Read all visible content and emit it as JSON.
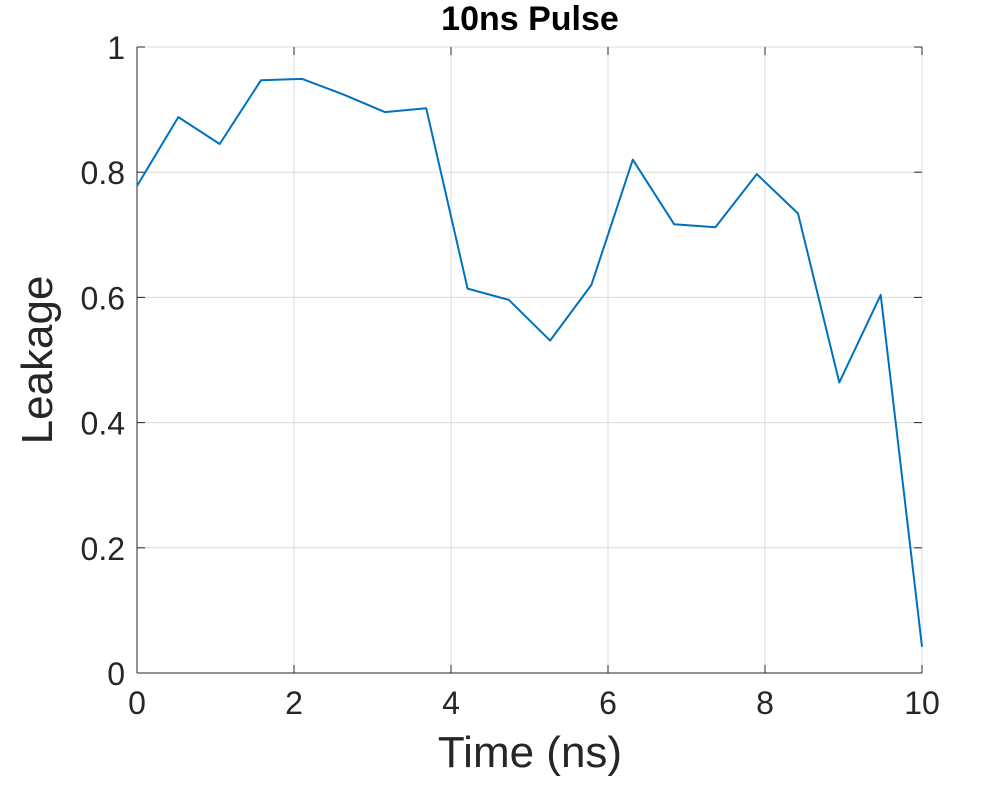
{
  "chart_data": {
    "type": "line",
    "title": "10ns Pulse",
    "xlabel": "Time (ns)",
    "ylabel": "Leakage",
    "xlim": [
      0,
      10
    ],
    "ylim": [
      0,
      1
    ],
    "xticks": [
      0,
      2,
      4,
      6,
      8,
      10
    ],
    "yticks": [
      0,
      0.2,
      0.4,
      0.6,
      0.8,
      1
    ],
    "xtick_labels": [
      "0",
      "2",
      "4",
      "6",
      "8",
      "10"
    ],
    "ytick_labels": [
      "0",
      "0.2",
      "0.4",
      "0.6",
      "0.8",
      "1"
    ],
    "grid": true,
    "line_color": "#0072BD",
    "series": [
      {
        "x": [
          0,
          0.526,
          1.053,
          1.579,
          2.105,
          2.632,
          3.158,
          3.684,
          4.211,
          4.737,
          5.263,
          5.789,
          6.316,
          6.842,
          7.368,
          7.895,
          8.421,
          8.947,
          9.474,
          10.0
        ],
        "y": [
          0.778,
          0.888,
          0.845,
          0.947,
          0.949,
          0.924,
          0.896,
          0.902,
          0.614,
          0.596,
          0.531,
          0.62,
          0.82,
          0.717,
          0.712,
          0.797,
          0.734,
          0.464,
          0.604,
          0.042
        ]
      }
    ]
  }
}
